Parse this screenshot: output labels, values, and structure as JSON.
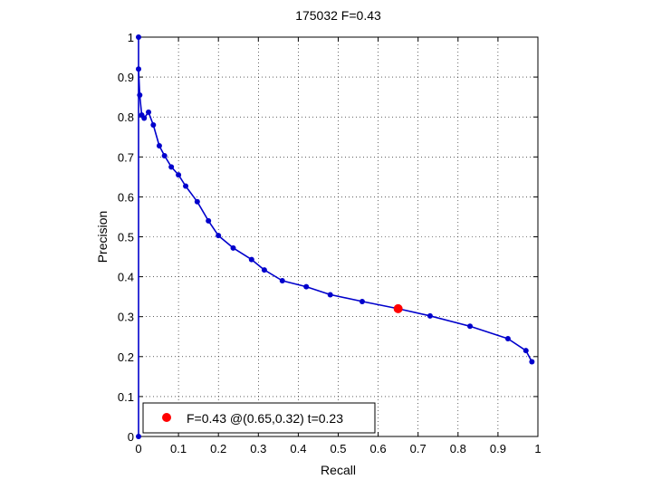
{
  "chart_data": {
    "type": "line",
    "title": "175032 F=0.43",
    "xlabel": "Recall",
    "ylabel": "Precision",
    "xlim": [
      0,
      1
    ],
    "ylim": [
      0,
      1
    ],
    "grid": true,
    "xticks": [
      "0",
      "0.1",
      "0.2",
      "0.3",
      "0.4",
      "0.5",
      "0.6",
      "0.7",
      "0.8",
      "0.9",
      "1"
    ],
    "yticks": [
      "0",
      "0.1",
      "0.2",
      "0.3",
      "0.4",
      "0.5",
      "0.6",
      "0.7",
      "0.8",
      "0.9",
      "1"
    ],
    "series": [
      {
        "color": "#0000cc",
        "points": [
          [
            0.0,
            0.0
          ],
          [
            0.0,
            1.0
          ],
          [
            0.0,
            0.92
          ],
          [
            0.003,
            0.855
          ],
          [
            0.008,
            0.805
          ],
          [
            0.014,
            0.797
          ],
          [
            0.025,
            0.812
          ],
          [
            0.037,
            0.78
          ],
          [
            0.052,
            0.728
          ],
          [
            0.065,
            0.703
          ],
          [
            0.082,
            0.675
          ],
          [
            0.1,
            0.655
          ],
          [
            0.118,
            0.627
          ],
          [
            0.147,
            0.588
          ],
          [
            0.175,
            0.54
          ],
          [
            0.2,
            0.503
          ],
          [
            0.237,
            0.472
          ],
          [
            0.283,
            0.443
          ],
          [
            0.315,
            0.417
          ],
          [
            0.36,
            0.39
          ],
          [
            0.42,
            0.375
          ],
          [
            0.48,
            0.355
          ],
          [
            0.56,
            0.338
          ],
          [
            0.65,
            0.32
          ],
          [
            0.73,
            0.302
          ],
          [
            0.83,
            0.276
          ],
          [
            0.925,
            0.245
          ],
          [
            0.97,
            0.215
          ],
          [
            0.985,
            0.187
          ]
        ]
      }
    ],
    "highlight": {
      "x": 0.65,
      "y": 0.32,
      "color": "#ff0000"
    },
    "legend": {
      "label": "F=0.43 @(0.65,0.32) t=0.23",
      "position": "bottom-left"
    }
  }
}
